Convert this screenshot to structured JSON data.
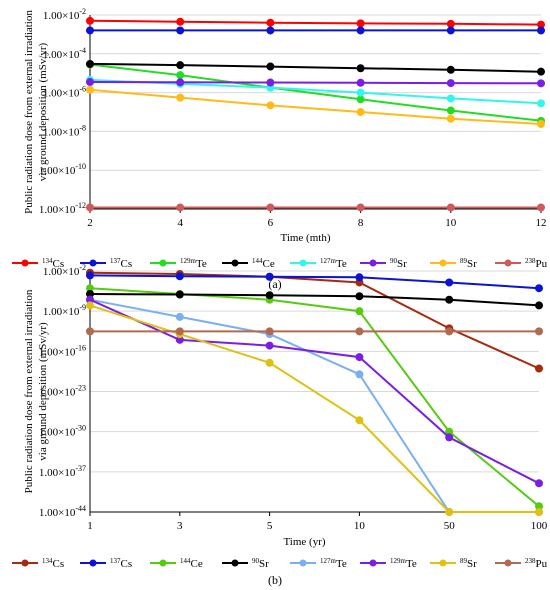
{
  "chart_data": [
    {
      "type": "line",
      "panel_label": "(a)",
      "xlabel": "Time (mth)",
      "ylabel_lines": [
        "Public radiation dose from external irradiation",
        "via ground deposition (mSv/yr)"
      ],
      "x_scale": "linear",
      "y_scale": "log",
      "xlim": [
        2,
        12
      ],
      "ylim_exp": [
        -12,
        -2
      ],
      "x": [
        2,
        4,
        6,
        8,
        10,
        12
      ],
      "x_ticks": [
        {
          "value": 2,
          "label": "2"
        },
        {
          "value": 4,
          "label": "4"
        },
        {
          "value": 6,
          "label": "6"
        },
        {
          "value": 8,
          "label": "8"
        },
        {
          "value": 10,
          "label": "10"
        },
        {
          "value": 12,
          "label": "12"
        }
      ],
      "y_ticks": [
        {
          "exp": -2,
          "mant": "1.00×10",
          "sup": "-2"
        },
        {
          "exp": -4,
          "mant": "1.00×10",
          "sup": "-4"
        },
        {
          "exp": -6,
          "mant": "1.00×10",
          "sup": "-6"
        },
        {
          "exp": -8,
          "mant": "1.00×10",
          "sup": "-8"
        },
        {
          "exp": -10,
          "mant": "1.00×10",
          "sup": "-10"
        },
        {
          "exp": -12,
          "mant": "1.00×10",
          "sup": "-12"
        }
      ],
      "grid": "horizontal",
      "legend_position": "bottom",
      "series": [
        {
          "sup": "134",
          "el": "Cs",
          "color": "#ff0000",
          "values": [
            0.005,
            0.0045,
            0.004,
            0.0037,
            0.0035,
            0.0032
          ]
        },
        {
          "sup": "137",
          "el": "Cs",
          "color": "#0a14d2",
          "values": [
            0.0016,
            0.0016,
            0.0016,
            0.0016,
            0.0016,
            0.0016
          ]
        },
        {
          "sup": "129m",
          "el": "Te",
          "color": "#22dd22",
          "values": [
            2.8e-05,
            8e-06,
            1.8e-06,
            4.5e-07,
            1.2e-07,
            3.5e-08
          ]
        },
        {
          "sup": "144",
          "el": "Ce",
          "color": "#000000",
          "values": [
            3e-05,
            2.6e-05,
            2.2e-05,
            1.8e-05,
            1.5e-05,
            1.2e-05
          ]
        },
        {
          "sup": "127m",
          "el": "Te",
          "color": "#33f5ee",
          "values": [
            4.5e-06,
            2.8e-06,
            1.8e-06,
            1e-06,
            5e-07,
            2.8e-07
          ]
        },
        {
          "sup": "90",
          "el": "Sr",
          "color": "#7a1ee6",
          "values": [
            3.5e-06,
            3.4e-06,
            3.3e-06,
            3.2e-06,
            3.1e-06,
            3e-06
          ]
        },
        {
          "sup": "89",
          "el": "Sr",
          "color": "#ffbb1a",
          "values": [
            1.4e-06,
            5.5e-07,
            2.2e-07,
            1e-07,
            4.5e-08,
            2.4e-08
          ]
        },
        {
          "sup": "238",
          "el": "Pu",
          "color": "#d05a5a",
          "values": [
            1.2e-12,
            1.2e-12,
            1.2e-12,
            1.2e-12,
            1.2e-12,
            1.2e-12
          ]
        }
      ]
    },
    {
      "type": "line",
      "panel_label": "(b)",
      "xlabel": "Time (yr)",
      "ylabel_lines": [
        "Public radiation dose from external irradiation",
        "via ground deposition (mSv/yr)"
      ],
      "x_scale": "categorical",
      "y_scale": "log",
      "ylim_exp": [
        -44,
        -2
      ],
      "x": [
        1,
        3,
        5,
        10,
        50,
        100
      ],
      "x_ticks": [
        {
          "value": 1,
          "label": "1"
        },
        {
          "value": 3,
          "label": "3"
        },
        {
          "value": 5,
          "label": "5"
        },
        {
          "value": 10,
          "label": "10"
        },
        {
          "value": 50,
          "label": "50"
        },
        {
          "value": 100,
          "label": "100"
        }
      ],
      "y_ticks": [
        {
          "exp": -2,
          "mant": "1.00×10",
          "sup": "-2"
        },
        {
          "exp": -9,
          "mant": "1.00×10",
          "sup": "-9"
        },
        {
          "exp": -16,
          "mant": "1.00×10",
          "sup": "-16"
        },
        {
          "exp": -23,
          "mant": "1.00×10",
          "sup": "-23"
        },
        {
          "exp": -30,
          "mant": "1.00×10",
          "sup": "-30"
        },
        {
          "exp": -37,
          "mant": "1.00×10",
          "sup": "-37"
        },
        {
          "exp": -44,
          "mant": "1.00×10",
          "sup": "-44"
        }
      ],
      "grid": "horizontal",
      "legend_position": "bottom",
      "series": [
        {
          "sup": "134",
          "el": "Cs",
          "color": "#a52a10",
          "values": [
            0.005,
            0.003,
            0.001,
            0.0001,
            1e-12,
            1e-19
          ]
        },
        {
          "sup": "137",
          "el": "Cs",
          "color": "#0a14d2",
          "values": [
            0.0017,
            0.0012,
            0.001,
            0.0008,
            0.0001,
            1e-05
          ]
        },
        {
          "sup": "144",
          "el": "Ce",
          "color": "#55cc10",
          "values": [
            1e-05,
            1e-06,
            1e-07,
            1e-09,
            1e-30,
            1e-43
          ]
        },
        {
          "sup": "90",
          "el": "Sr",
          "color": "#000000",
          "values": [
            1e-06,
            8e-07,
            6e-07,
            4e-07,
            1e-07,
            1e-08
          ]
        },
        {
          "sup": "127m",
          "el": "Te",
          "color": "#7ab0f0",
          "values": [
            1e-07,
            1e-10,
            1e-13,
            1e-20,
            1e-44,
            1e-44
          ]
        },
        {
          "sup": "129m",
          "el": "Te",
          "color": "#7a1ee6",
          "values": [
            1e-07,
            1e-14,
            1e-15,
            1e-17,
            1e-31,
            1e-39
          ]
        },
        {
          "sup": "89",
          "el": "Sr",
          "color": "#e0c010",
          "values": [
            1e-08,
            1e-13,
            1e-18,
            1e-28,
            1e-44,
            1e-44
          ]
        },
        {
          "sup": "238",
          "el": "Pu",
          "color": "#b06a50",
          "values": [
            3e-13,
            3e-13,
            3e-13,
            3e-13,
            3e-13,
            3e-13
          ]
        }
      ]
    }
  ]
}
